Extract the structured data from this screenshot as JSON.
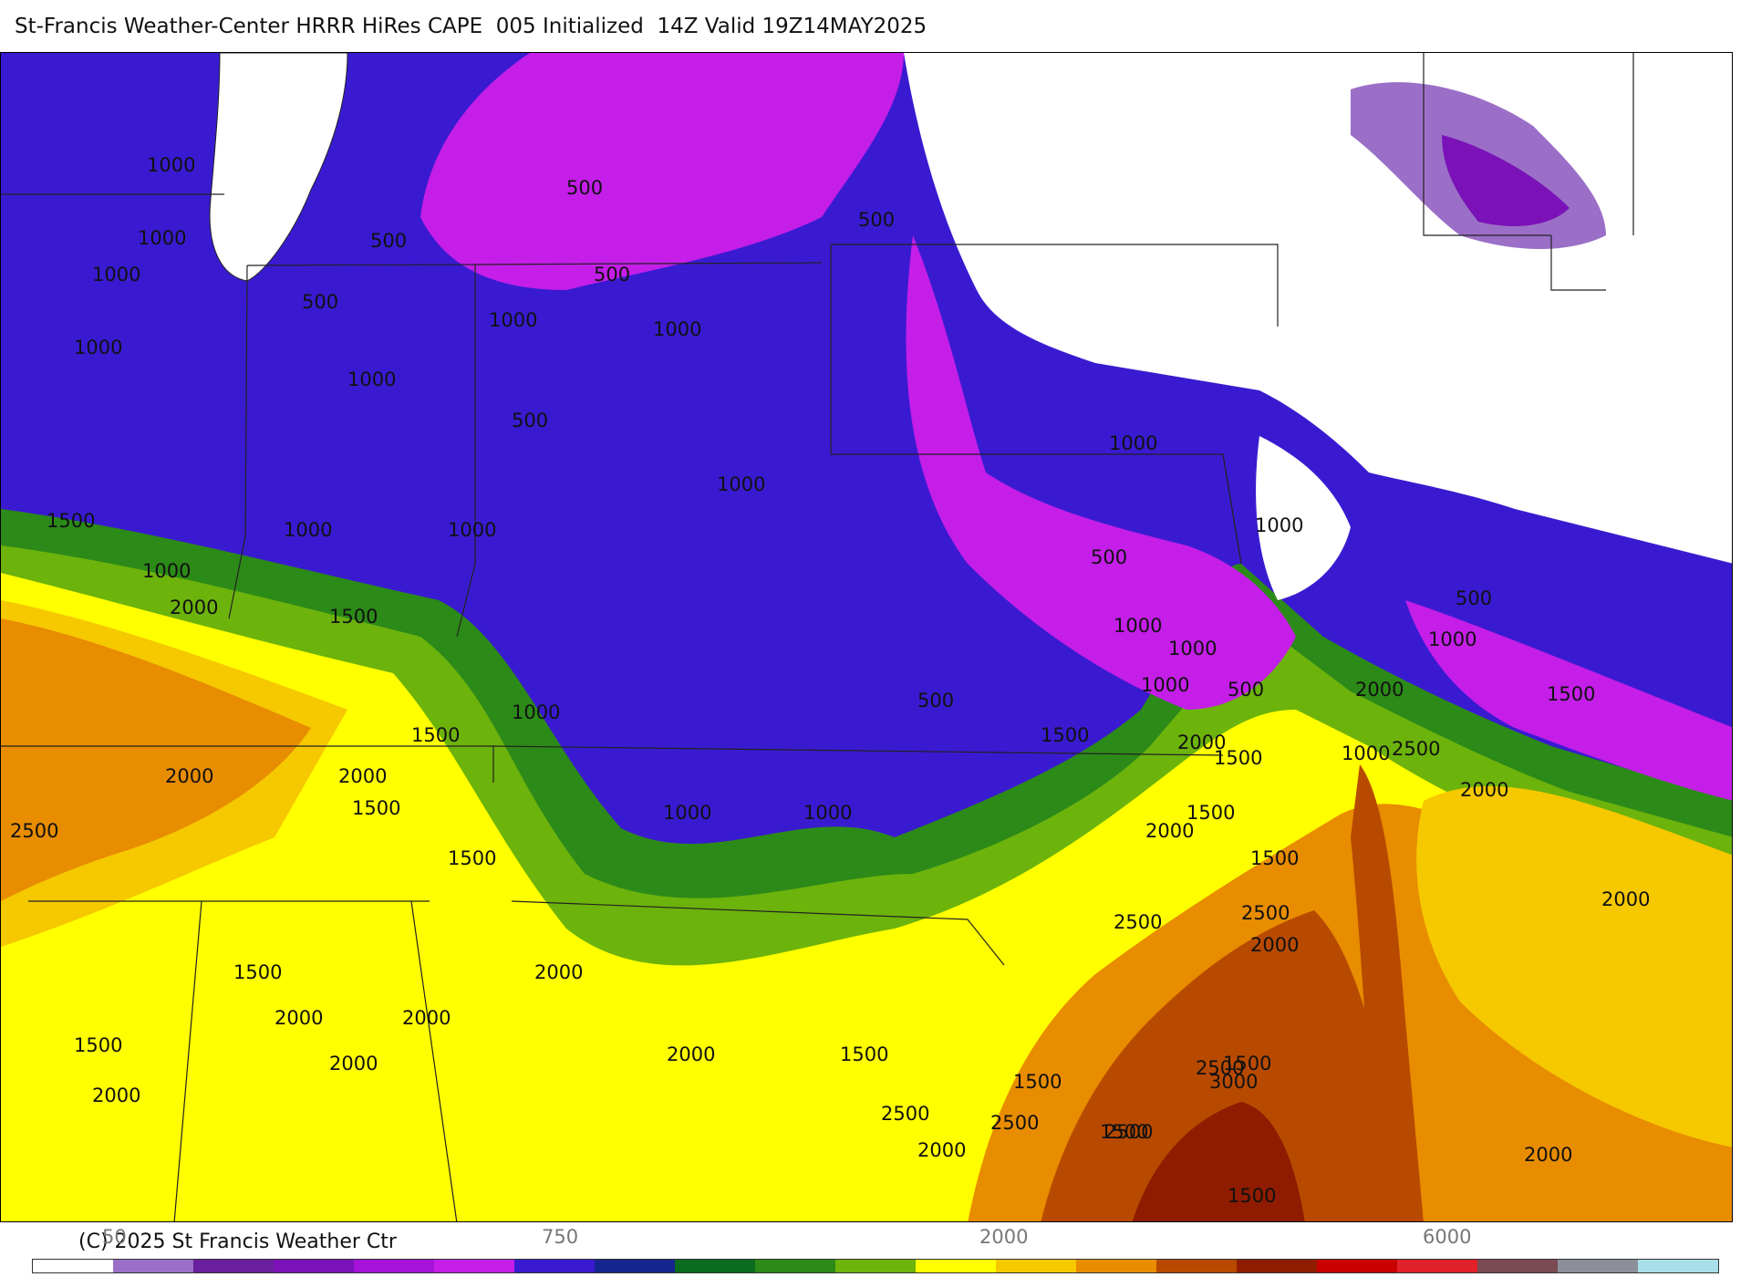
{
  "title": "St-Francis Weather-Center HRRR HiRes CAPE  005 Initialized  14Z Valid 19Z14MAY2025",
  "copyright": "(C) 2025 St Francis Weather Ctr",
  "legend": {
    "colors": [
      "#ffffff",
      "#9b6fc7",
      "#6a1f9e",
      "#7b12b8",
      "#a512d8",
      "#c41ee8",
      "#3a1ad0",
      "#16248f",
      "#0b6b1f",
      "#2c8a18",
      "#6cb30c",
      "#ffff00",
      "#f5c800",
      "#e88c00",
      "#b84a00",
      "#8f1c00",
      "#c80000",
      "#e0202a",
      "#7a4a52",
      "#8c8f99",
      "#a9dfe8"
    ],
    "tick_labels": [
      "50",
      "750",
      "2000",
      "6000"
    ]
  },
  "contour_labels": [
    {
      "text": "1000"
    },
    {
      "text": "1000"
    },
    {
      "text": "1000"
    },
    {
      "text": "1000"
    },
    {
      "text": "500"
    },
    {
      "text": "500"
    },
    {
      "text": "500"
    },
    {
      "text": "500"
    },
    {
      "text": "500"
    },
    {
      "text": "1000"
    },
    {
      "text": "1000"
    },
    {
      "text": "1000"
    },
    {
      "text": "500"
    },
    {
      "text": "1000"
    },
    {
      "text": "1500"
    },
    {
      "text": "1000"
    },
    {
      "text": "1000"
    },
    {
      "text": "1000"
    },
    {
      "text": "2000"
    },
    {
      "text": "1500"
    },
    {
      "text": "1500"
    },
    {
      "text": "2000"
    },
    {
      "text": "2000"
    },
    {
      "text": "1500"
    },
    {
      "text": "2500"
    },
    {
      "text": "1000"
    },
    {
      "text": "500"
    },
    {
      "text": "1000"
    },
    {
      "text": "1500"
    },
    {
      "text": "1000"
    },
    {
      "text": "1000"
    },
    {
      "text": "1500"
    },
    {
      "text": "1500"
    },
    {
      "text": "1500"
    },
    {
      "text": "1500"
    },
    {
      "text": "1500"
    },
    {
      "text": "2000"
    },
    {
      "text": "2000"
    },
    {
      "text": "2000"
    },
    {
      "text": "2000"
    },
    {
      "text": "2000"
    },
    {
      "text": "2000"
    },
    {
      "text": "1500"
    },
    {
      "text": "1500"
    },
    {
      "text": "2500"
    },
    {
      "text": "2000"
    },
    {
      "text": "2500"
    },
    {
      "text": "1500"
    },
    {
      "text": "1500"
    },
    {
      "text": "500"
    },
    {
      "text": "1000"
    },
    {
      "text": "1000"
    },
    {
      "text": "1000"
    },
    {
      "text": "500"
    },
    {
      "text": "1000"
    },
    {
      "text": "2000"
    },
    {
      "text": "1500"
    },
    {
      "text": "1000"
    },
    {
      "text": "2000"
    },
    {
      "text": "2500"
    },
    {
      "text": "2500"
    },
    {
      "text": "2000"
    },
    {
      "text": "2500"
    },
    {
      "text": "1500"
    },
    {
      "text": "3000"
    },
    {
      "text": "2500"
    },
    {
      "text": "500"
    },
    {
      "text": "1000"
    },
    {
      "text": "2000"
    },
    {
      "text": "2500"
    },
    {
      "text": "1500"
    },
    {
      "text": "2000"
    },
    {
      "text": "2000"
    },
    {
      "text": "2000"
    }
  ]
}
